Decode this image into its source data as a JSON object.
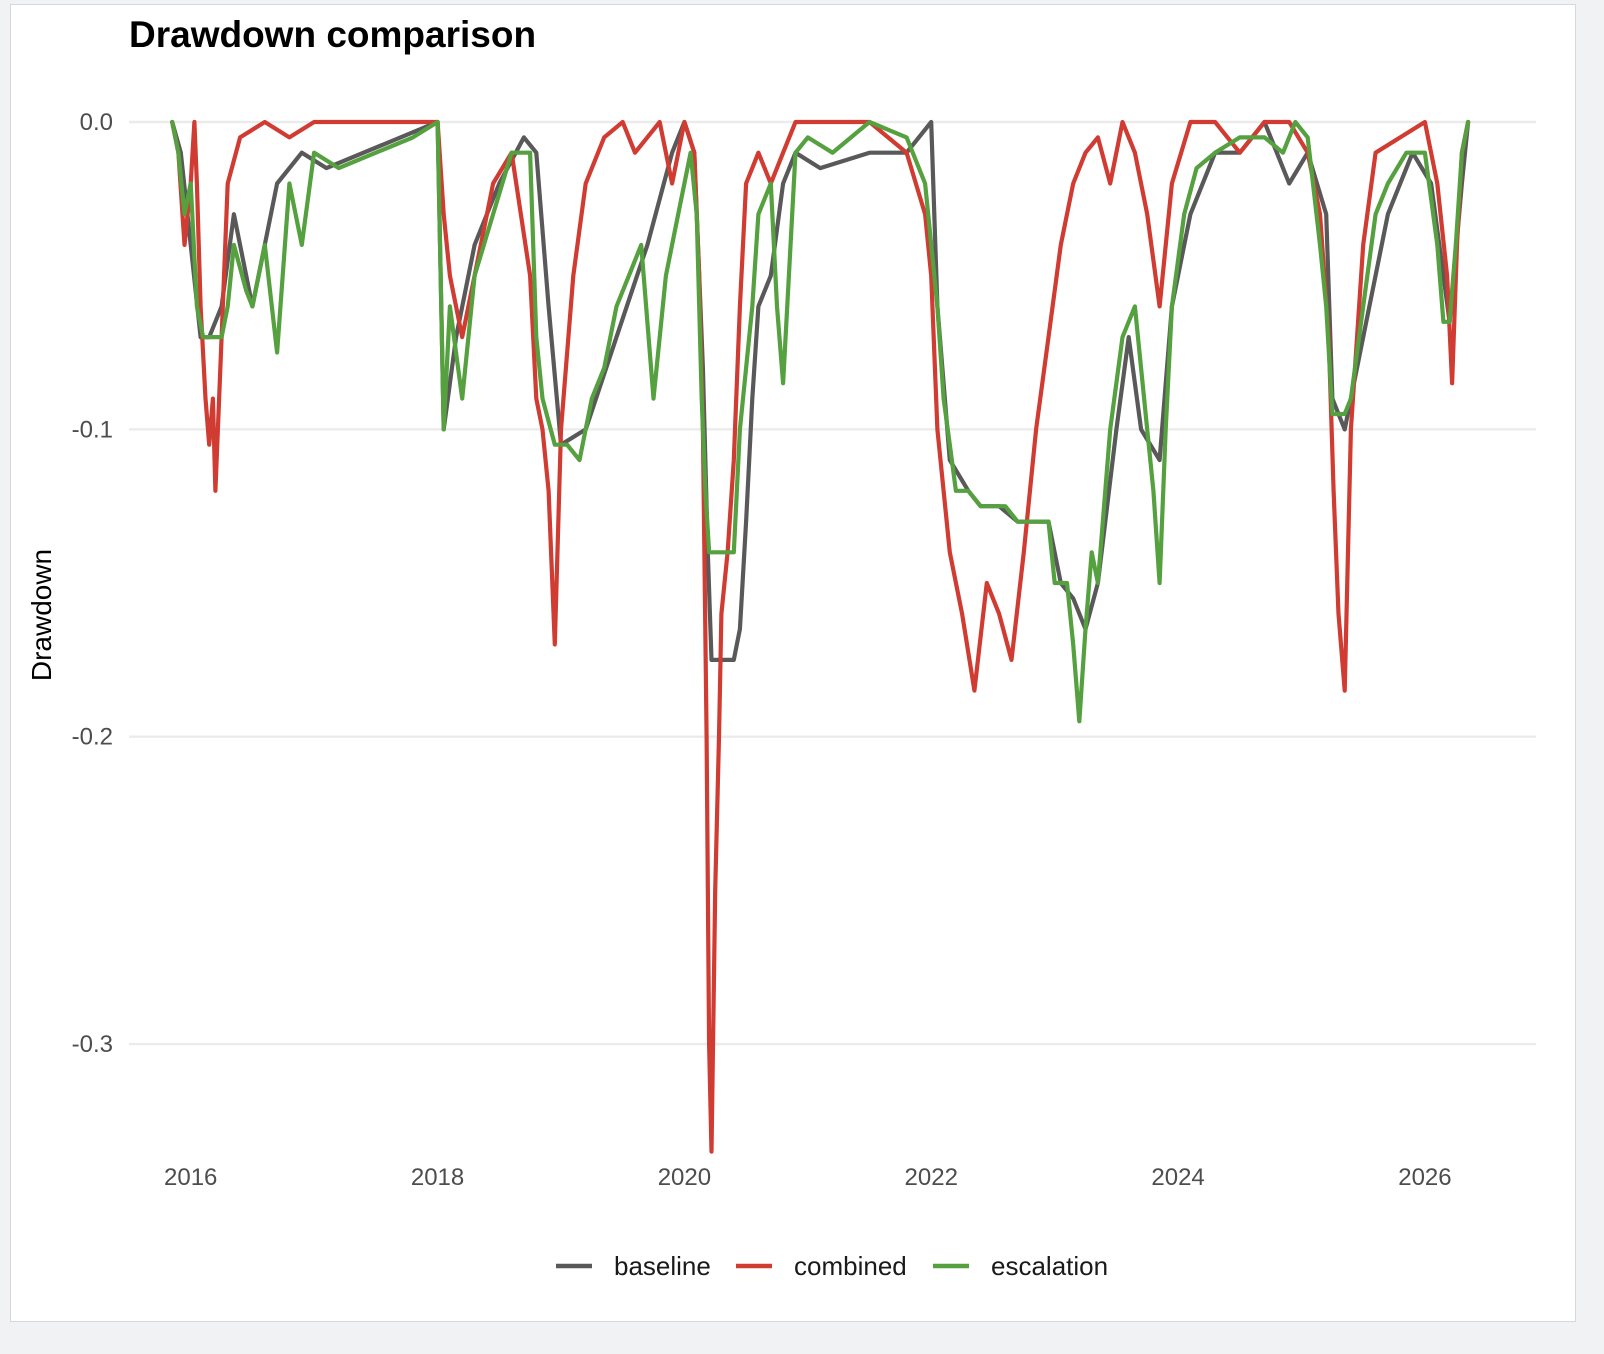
{
  "chart_data": {
    "type": "line",
    "title": "Drawdown comparison",
    "ylabel": "Drawdown",
    "xlabel": "",
    "xlim": [
      2015.5,
      2026.9
    ],
    "ylim": [
      -0.34,
      0.0
    ],
    "x_ticks": [
      2016,
      2018,
      2020,
      2022,
      2024,
      2026
    ],
    "x_tick_labels": [
      "2016",
      "2018",
      "2020",
      "2022",
      "2024",
      "2026"
    ],
    "y_ticks": [
      0.0,
      -0.1,
      -0.2,
      -0.3
    ],
    "y_tick_labels": [
      "0.0",
      "-0.1",
      "-0.2",
      "-0.3"
    ],
    "grid": true,
    "legend_position": "bottom",
    "series": [
      {
        "name": "baseline",
        "color": "#595959",
        "x": [
          2015.85,
          2015.92,
          2016.0,
          2016.08,
          2016.15,
          2016.25,
          2016.35,
          2016.5,
          2016.7,
          2016.9,
          2017.1,
          2017.4,
          2017.7,
          2018.0,
          2018.05,
          2018.15,
          2018.3,
          2018.5,
          2018.7,
          2018.8,
          2018.9,
          2019.0,
          2019.2,
          2019.45,
          2019.7,
          2019.9,
          2020.0,
          2020.08,
          2020.15,
          2020.19,
          2020.22,
          2020.4,
          2020.45,
          2020.5,
          2020.55,
          2020.6,
          2020.7,
          2020.8,
          2020.9,
          2021.1,
          2021.5,
          2021.8,
          2022.0,
          2022.05,
          2022.15,
          2022.3,
          2022.4,
          2022.55,
          2022.7,
          2022.85,
          2022.95,
          2023.05,
          2023.15,
          2023.25,
          2023.35,
          2023.5,
          2023.6,
          2023.7,
          2023.85,
          2023.95,
          2024.1,
          2024.3,
          2024.5,
          2024.7,
          2024.9,
          2025.05,
          2025.2,
          2025.25,
          2025.3,
          2025.35,
          2025.5,
          2025.7,
          2025.9,
          2026.05,
          2026.2,
          2026.3,
          2026.35
        ],
        "y": [
          0.0,
          -0.01,
          -0.04,
          -0.07,
          -0.07,
          -0.06,
          -0.03,
          -0.06,
          -0.02,
          -0.01,
          -0.015,
          -0.01,
          -0.005,
          0.0,
          -0.1,
          -0.07,
          -0.04,
          -0.02,
          -0.005,
          -0.01,
          -0.06,
          -0.105,
          -0.1,
          -0.07,
          -0.04,
          -0.01,
          0.0,
          -0.01,
          -0.08,
          -0.14,
          -0.175,
          -0.175,
          -0.165,
          -0.13,
          -0.09,
          -0.06,
          -0.05,
          -0.02,
          -0.01,
          -0.015,
          -0.01,
          -0.01,
          0.0,
          -0.06,
          -0.11,
          -0.12,
          -0.125,
          -0.125,
          -0.13,
          -0.13,
          -0.13,
          -0.15,
          -0.155,
          -0.165,
          -0.15,
          -0.1,
          -0.07,
          -0.1,
          -0.11,
          -0.06,
          -0.03,
          -0.01,
          -0.01,
          0.0,
          -0.02,
          -0.01,
          -0.03,
          -0.09,
          -0.095,
          -0.1,
          -0.07,
          -0.03,
          -0.01,
          -0.02,
          -0.065,
          -0.02,
          0.0
        ]
      },
      {
        "name": "combined",
        "color": "#d03b32",
        "x": [
          2015.85,
          2015.9,
          2015.95,
          2016.0,
          2016.03,
          2016.05,
          2016.08,
          2016.12,
          2016.15,
          2016.18,
          2016.2,
          2016.25,
          2016.3,
          2016.4,
          2016.6,
          2016.8,
          2017.0,
          2017.3,
          2017.6,
          2017.9,
          2018.0,
          2018.05,
          2018.1,
          2018.2,
          2018.3,
          2018.45,
          2018.6,
          2018.75,
          2018.8,
          2018.85,
          2018.9,
          2018.95,
          2019.0,
          2019.1,
          2019.2,
          2019.35,
          2019.5,
          2019.6,
          2019.8,
          2019.9,
          2020.0,
          2020.08,
          2020.12,
          2020.15,
          2020.18,
          2020.2,
          2020.22,
          2020.25,
          2020.28,
          2020.3,
          2020.35,
          2020.4,
          2020.45,
          2020.5,
          2020.6,
          2020.7,
          2020.8,
          2020.9,
          2021.1,
          2021.5,
          2021.8,
          2021.95,
          2022.0,
          2022.05,
          2022.15,
          2022.25,
          2022.35,
          2022.45,
          2022.55,
          2022.65,
          2022.75,
          2022.85,
          2022.95,
          2023.05,
          2023.15,
          2023.25,
          2023.35,
          2023.45,
          2023.55,
          2023.65,
          2023.75,
          2023.85,
          2023.95,
          2024.1,
          2024.3,
          2024.5,
          2024.7,
          2024.9,
          2025.05,
          2025.15,
          2025.22,
          2025.26,
          2025.3,
          2025.35,
          2025.4,
          2025.5,
          2025.6,
          2025.8,
          2026.0,
          2026.1,
          2026.18,
          2026.22,
          2026.26,
          2026.3,
          2026.35
        ],
        "y": [
          0.0,
          -0.01,
          -0.04,
          -0.02,
          0.0,
          -0.02,
          -0.06,
          -0.09,
          -0.105,
          -0.09,
          -0.12,
          -0.07,
          -0.02,
          -0.005,
          0.0,
          -0.005,
          0.0,
          0.0,
          0.0,
          0.0,
          0.0,
          -0.03,
          -0.05,
          -0.07,
          -0.05,
          -0.02,
          -0.01,
          -0.05,
          -0.09,
          -0.1,
          -0.12,
          -0.17,
          -0.1,
          -0.05,
          -0.02,
          -0.005,
          0.0,
          -0.01,
          0.0,
          -0.02,
          0.0,
          -0.01,
          -0.05,
          -0.1,
          -0.2,
          -0.3,
          -0.335,
          -0.25,
          -0.2,
          -0.16,
          -0.14,
          -0.11,
          -0.06,
          -0.02,
          -0.01,
          -0.02,
          -0.01,
          0.0,
          0.0,
          0.0,
          -0.01,
          -0.03,
          -0.05,
          -0.1,
          -0.14,
          -0.16,
          -0.185,
          -0.15,
          -0.16,
          -0.175,
          -0.14,
          -0.1,
          -0.07,
          -0.04,
          -0.02,
          -0.01,
          -0.005,
          -0.02,
          0.0,
          -0.01,
          -0.03,
          -0.06,
          -0.02,
          0.0,
          0.0,
          -0.01,
          0.0,
          0.0,
          -0.01,
          -0.03,
          -0.07,
          -0.12,
          -0.16,
          -0.185,
          -0.1,
          -0.04,
          -0.01,
          -0.005,
          0.0,
          -0.02,
          -0.05,
          -0.085,
          -0.04,
          -0.01,
          0.0
        ]
      },
      {
        "name": "escalation",
        "color": "#55a03f",
        "x": [
          2015.85,
          2015.9,
          2015.95,
          2016.0,
          2016.05,
          2016.1,
          2016.15,
          2016.2,
          2016.25,
          2016.3,
          2016.35,
          2016.45,
          2016.5,
          2016.6,
          2016.7,
          2016.8,
          2016.9,
          2017.0,
          2017.2,
          2017.5,
          2017.8,
          2018.0,
          2018.05,
          2018.1,
          2018.2,
          2018.3,
          2018.45,
          2018.6,
          2018.75,
          2018.8,
          2018.85,
          2018.95,
          2019.05,
          2019.15,
          2019.25,
          2019.35,
          2019.45,
          2019.55,
          2019.65,
          2019.75,
          2019.85,
          2019.95,
          2020.05,
          2020.1,
          2020.14,
          2020.17,
          2020.2,
          2020.3,
          2020.4,
          2020.45,
          2020.5,
          2020.55,
          2020.6,
          2020.7,
          2020.75,
          2020.8,
          2020.9,
          2021.0,
          2021.2,
          2021.5,
          2021.8,
          2021.95,
          2022.05,
          2022.1,
          2022.15,
          2022.2,
          2022.3,
          2022.4,
          2022.5,
          2022.6,
          2022.7,
          2022.8,
          2022.9,
          2022.95,
          2023.0,
          2023.05,
          2023.1,
          2023.15,
          2023.2,
          2023.25,
          2023.3,
          2023.35,
          2023.45,
          2023.55,
          2023.65,
          2023.75,
          2023.8,
          2023.85,
          2023.9,
          2023.95,
          2024.05,
          2024.15,
          2024.3,
          2024.5,
          2024.7,
          2024.85,
          2024.95,
          2025.05,
          2025.15,
          2025.2,
          2025.25,
          2025.3,
          2025.35,
          2025.4,
          2025.5,
          2025.6,
          2025.7,
          2025.85,
          2026.0,
          2026.1,
          2026.15,
          2026.2,
          2026.25,
          2026.3,
          2026.35
        ],
        "y": [
          0.0,
          -0.01,
          -0.03,
          -0.02,
          -0.06,
          -0.07,
          -0.07,
          -0.07,
          -0.07,
          -0.06,
          -0.04,
          -0.055,
          -0.06,
          -0.04,
          -0.075,
          -0.02,
          -0.04,
          -0.01,
          -0.015,
          -0.01,
          -0.005,
          0.0,
          -0.1,
          -0.06,
          -0.09,
          -0.05,
          -0.03,
          -0.01,
          -0.01,
          -0.07,
          -0.09,
          -0.105,
          -0.105,
          -0.11,
          -0.09,
          -0.08,
          -0.06,
          -0.05,
          -0.04,
          -0.09,
          -0.05,
          -0.03,
          -0.01,
          -0.03,
          -0.09,
          -0.12,
          -0.14,
          -0.14,
          -0.14,
          -0.1,
          -0.08,
          -0.06,
          -0.03,
          -0.02,
          -0.06,
          -0.085,
          -0.01,
          -0.005,
          -0.01,
          0.0,
          -0.005,
          -0.02,
          -0.06,
          -0.09,
          -0.105,
          -0.12,
          -0.12,
          -0.125,
          -0.125,
          -0.125,
          -0.13,
          -0.13,
          -0.13,
          -0.13,
          -0.15,
          -0.15,
          -0.15,
          -0.17,
          -0.195,
          -0.165,
          -0.14,
          -0.15,
          -0.1,
          -0.07,
          -0.06,
          -0.1,
          -0.12,
          -0.15,
          -0.1,
          -0.06,
          -0.03,
          -0.015,
          -0.01,
          -0.005,
          -0.005,
          -0.01,
          0.0,
          -0.005,
          -0.04,
          -0.06,
          -0.095,
          -0.095,
          -0.095,
          -0.09,
          -0.06,
          -0.03,
          -0.02,
          -0.01,
          -0.01,
          -0.04,
          -0.065,
          -0.065,
          -0.04,
          -0.01,
          0.0
        ]
      }
    ]
  }
}
